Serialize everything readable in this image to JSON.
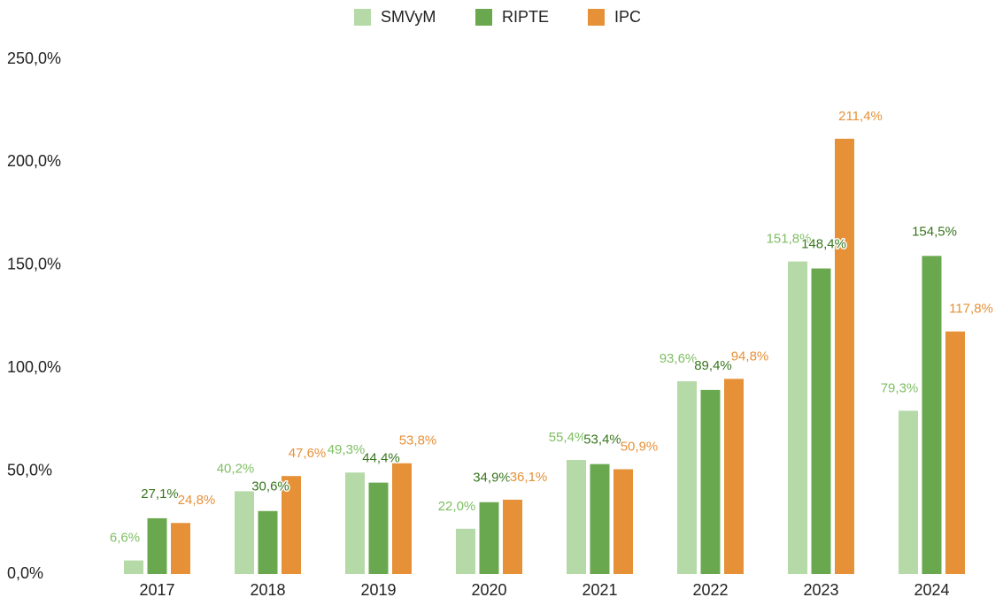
{
  "chart_data": {
    "type": "bar",
    "categories": [
      "2017",
      "2018",
      "2019",
      "2020",
      "2021",
      "2022",
      "2023",
      "2024"
    ],
    "series": [
      {
        "name": "SMVyM",
        "color": "#b5d9a7",
        "label_color": "#7fbf63",
        "values": [
          6.6,
          40.2,
          49.3,
          22.0,
          55.4,
          93.6,
          151.8,
          79.3
        ],
        "value_labels": [
          "6,6%",
          "40,2%",
          "49,3%",
          "22,0%",
          "55,4%",
          "93,6%",
          "151,8%",
          "79,3%"
        ]
      },
      {
        "name": "RIPTE",
        "color": "#6aa84f",
        "label_color": "#38761d",
        "values": [
          27.1,
          30.6,
          44.4,
          34.9,
          53.4,
          89.4,
          148.4,
          154.5
        ],
        "value_labels": [
          "27,1%",
          "30,6%",
          "44,4%",
          "34,9%",
          "53,4%",
          "89,4%",
          "148,4%",
          "154,5%"
        ]
      },
      {
        "name": "IPC",
        "color": "#e69138",
        "label_color": "#e69138",
        "values": [
          24.8,
          47.6,
          53.8,
          36.1,
          50.9,
          94.8,
          211.4,
          117.8
        ],
        "value_labels": [
          "24,8%",
          "47,6%",
          "53,8%",
          "36,1%",
          "50,9%",
          "94,8%",
          "211,4%",
          "117,8%"
        ]
      }
    ],
    "ylim": [
      0,
      250
    ],
    "yticks": [
      {
        "value": 0,
        "label": "0,0%"
      },
      {
        "value": 50,
        "label": "50,0%"
      },
      {
        "value": 100,
        "label": "100,0%"
      },
      {
        "value": 150,
        "label": "150,0%"
      },
      {
        "value": 200,
        "label": "200,0%"
      },
      {
        "value": 250,
        "label": "250,0%"
      }
    ],
    "legend": "top"
  }
}
